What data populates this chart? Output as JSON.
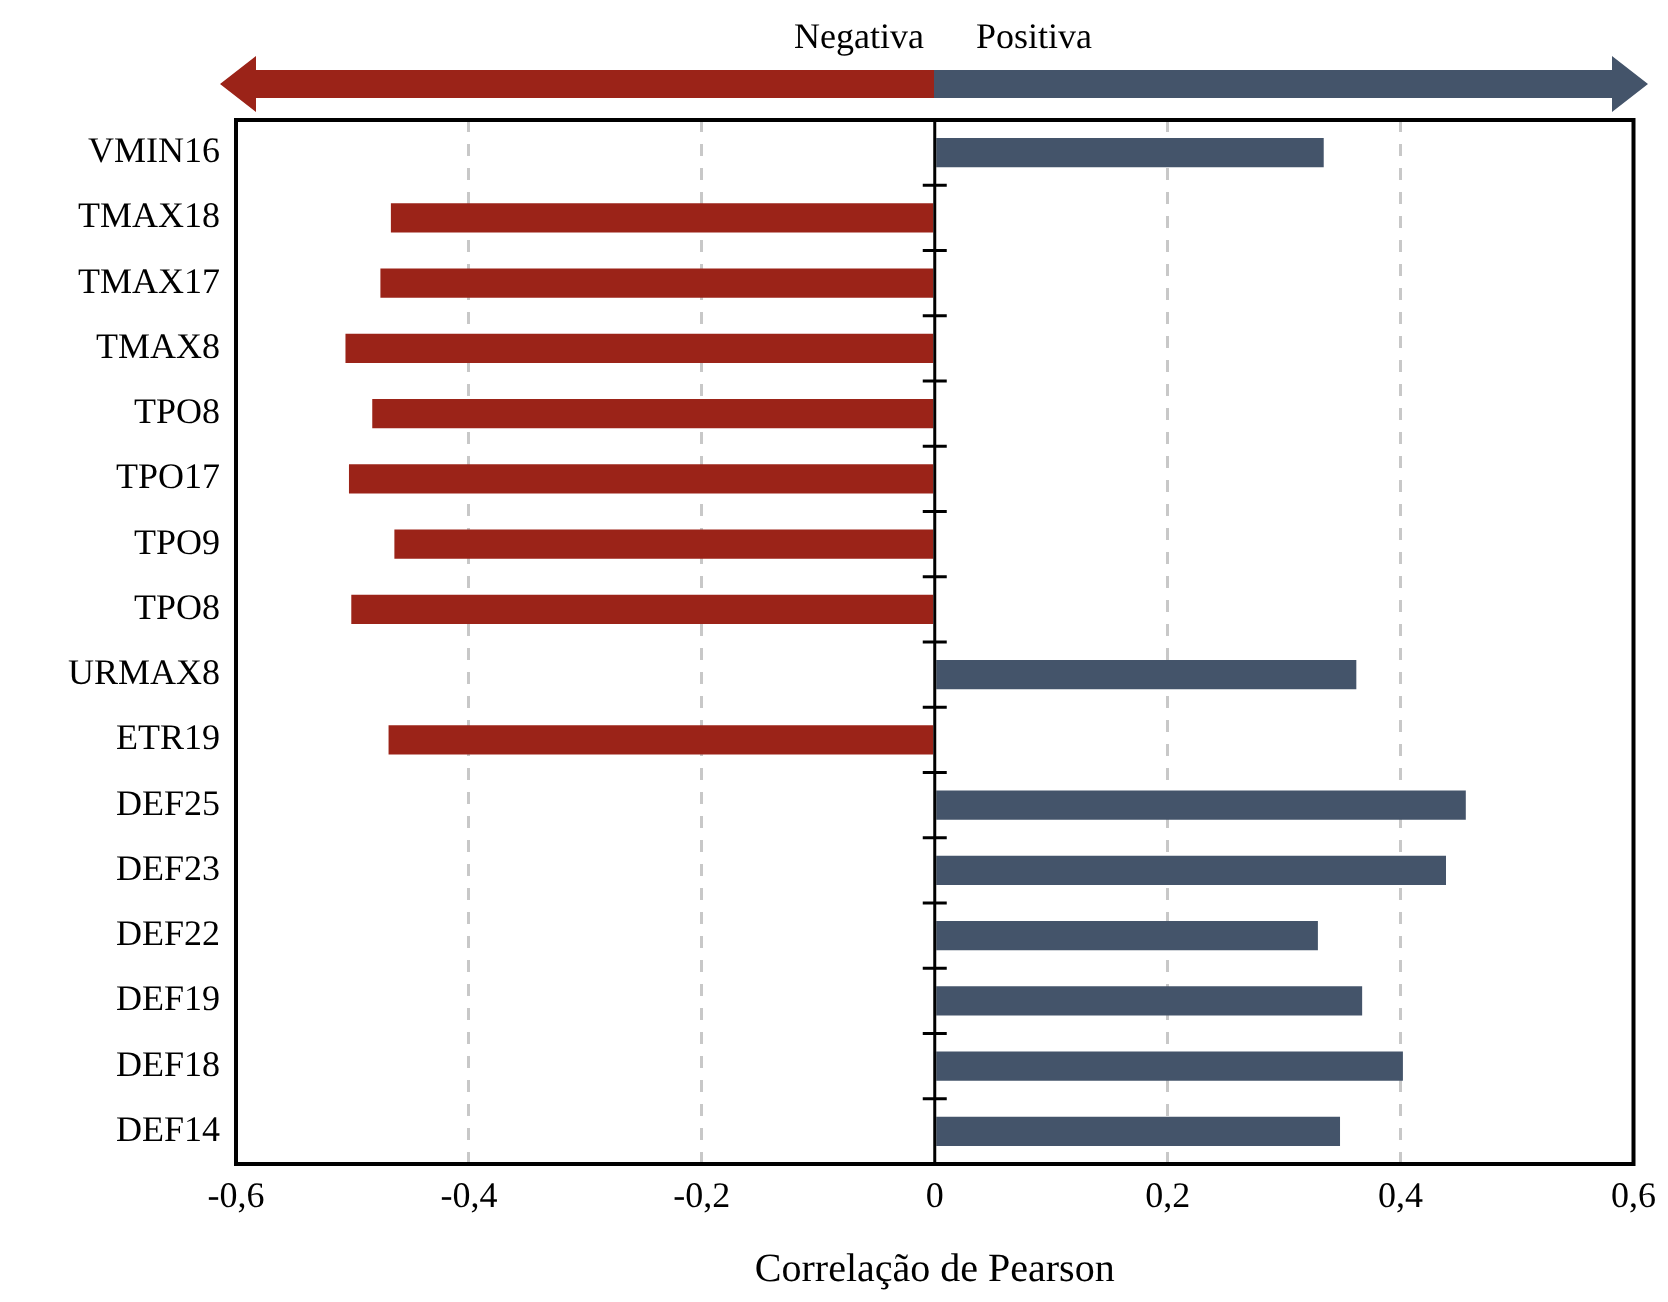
{
  "chart_data": {
    "type": "bar",
    "orientation": "horizontal",
    "xlabel": "Correlação de Pearson",
    "categories": [
      "VMIN16",
      "TMAX18",
      "TMAX17",
      "TMAX8",
      "TPO8",
      "TPO17",
      "TPO9",
      "TPO8",
      "URMAX8",
      "ETR19",
      "DEF25",
      "DEF23",
      "DEF22",
      "DEF19",
      "DEF18",
      "DEF14"
    ],
    "values": [
      0.334,
      -0.467,
      -0.476,
      -0.506,
      -0.483,
      -0.503,
      -0.464,
      -0.501,
      0.362,
      -0.469,
      0.456,
      0.439,
      0.329,
      0.367,
      0.402,
      0.348
    ],
    "colors": [
      "#44546a",
      "#9b2318",
      "#9b2318",
      "#9b2318",
      "#9b2318",
      "#9b2318",
      "#9b2318",
      "#9b2318",
      "#44546a",
      "#9b2318",
      "#44546a",
      "#44546a",
      "#44546a",
      "#44546a",
      "#44546a",
      "#44546a"
    ],
    "xlim": [
      -0.6,
      0.6
    ],
    "xticks": [
      {
        "value": -0.6,
        "label": "-0,6"
      },
      {
        "value": -0.4,
        "label": "-0,4"
      },
      {
        "value": -0.2,
        "label": "-0,2"
      },
      0,
      {
        "value": 0.2,
        "label": "0,2"
      },
      {
        "value": 0.4,
        "label": "0,4"
      },
      {
        "value": 0.6,
        "label": "0,6"
      }
    ],
    "grid": "x",
    "legend": false,
    "annotations": [
      "Negativa",
      "Positiva"
    ]
  }
}
